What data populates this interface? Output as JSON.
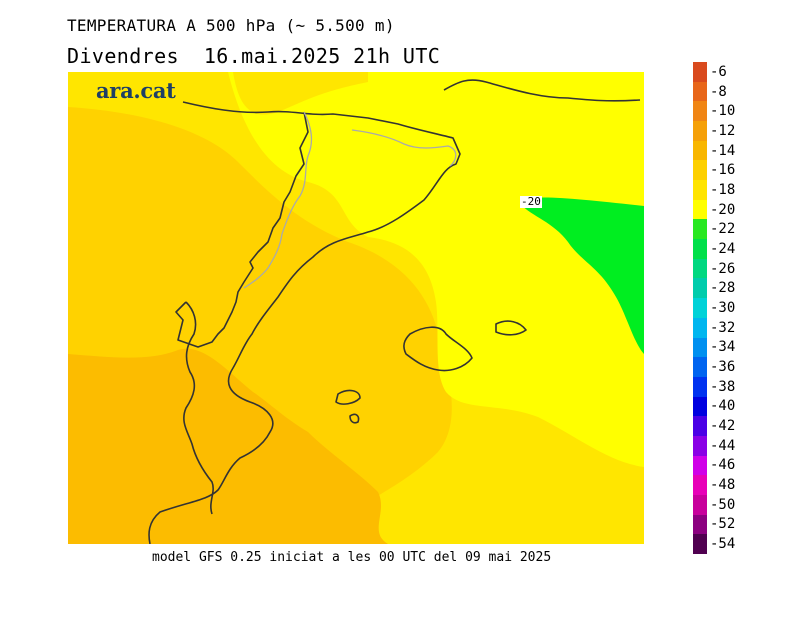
{
  "title": "TEMPERATURA A 500 hPa (~ 5.500 m)",
  "subtitle": "Divendres  16.mai.2025 21h UTC",
  "footer": "model GFS 0.25 iniciat a les 00 UTC del 09 mai 2025",
  "logo_text": "ara.cat",
  "contour_label": "-20",
  "colorbar": {
    "labels": [
      "-6",
      "-8",
      "-10",
      "-12",
      "-14",
      "-16",
      "-18",
      "-20",
      "-22",
      "-24",
      "-26",
      "-28",
      "-30",
      "-32",
      "-34",
      "-36",
      "-38",
      "-40",
      "-42",
      "-44",
      "-46",
      "-48",
      "-50",
      "-52",
      "-54"
    ],
    "colors": [
      "#d94a1e",
      "#e8661a",
      "#f08514",
      "#f5a008",
      "#f8b600",
      "#fdd000",
      "#ffe400",
      "#ffff00",
      "#28e820",
      "#00e04a",
      "#00d880",
      "#00ccac",
      "#00d2d8",
      "#00b6ef",
      "#0090f0",
      "#0064f0",
      "#0032f0",
      "#0000e0",
      "#4a00e6",
      "#8a00e6",
      "#d000e8",
      "#e800b8",
      "#c8009c",
      "#8c0080",
      "#500050"
    ]
  },
  "map_colors": {
    "m18_16": "#ffe600",
    "m16_14": "#ffd200",
    "m14_12": "#fcbc00",
    "m20_18": "#ffff00",
    "below_20": "#00ee20",
    "coast": "#333333",
    "border": "#aaaaaa"
  }
}
